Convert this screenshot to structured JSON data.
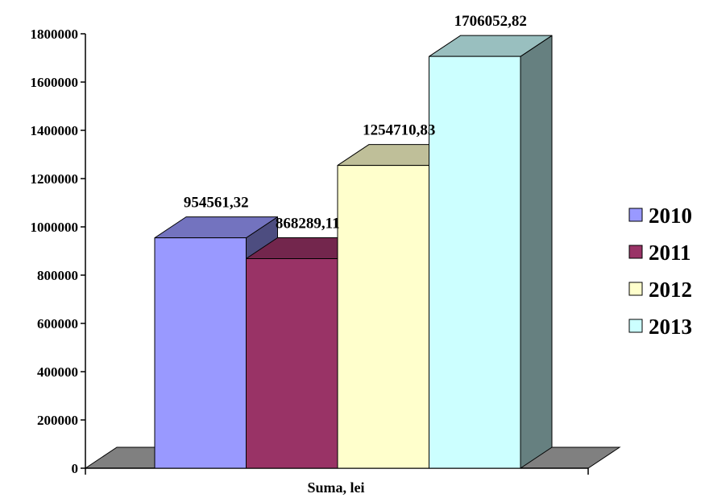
{
  "chart_data": {
    "type": "bar",
    "title": "",
    "xlabel": "Suma, lei",
    "ylabel": "",
    "categories": [
      "Suma, lei"
    ],
    "ylim": [
      0,
      1800000
    ],
    "yticks": [
      0,
      200000,
      400000,
      600000,
      800000,
      1000000,
      1200000,
      1400000,
      1600000,
      1800000
    ],
    "yticklabels": [
      "0",
      "200000",
      "400000",
      "600000",
      "800000",
      "1000000",
      "1200000",
      "1400000",
      "1600000",
      "1800000"
    ],
    "grid": false,
    "three_d": true,
    "legend_position": "right",
    "series": [
      {
        "name": "2010",
        "values": [
          954561.32
        ],
        "label": "954561,32",
        "color": "#9999ff"
      },
      {
        "name": "2011",
        "values": [
          868289.11
        ],
        "label": "868289,11",
        "color": "#993366"
      },
      {
        "name": "2012",
        "values": [
          1254710.83
        ],
        "label": "1254710,83",
        "color": "#ffffcc"
      },
      {
        "name": "2013",
        "values": [
          1706052.82
        ],
        "label": "1706052,82",
        "color": "#ccffff"
      }
    ]
  }
}
